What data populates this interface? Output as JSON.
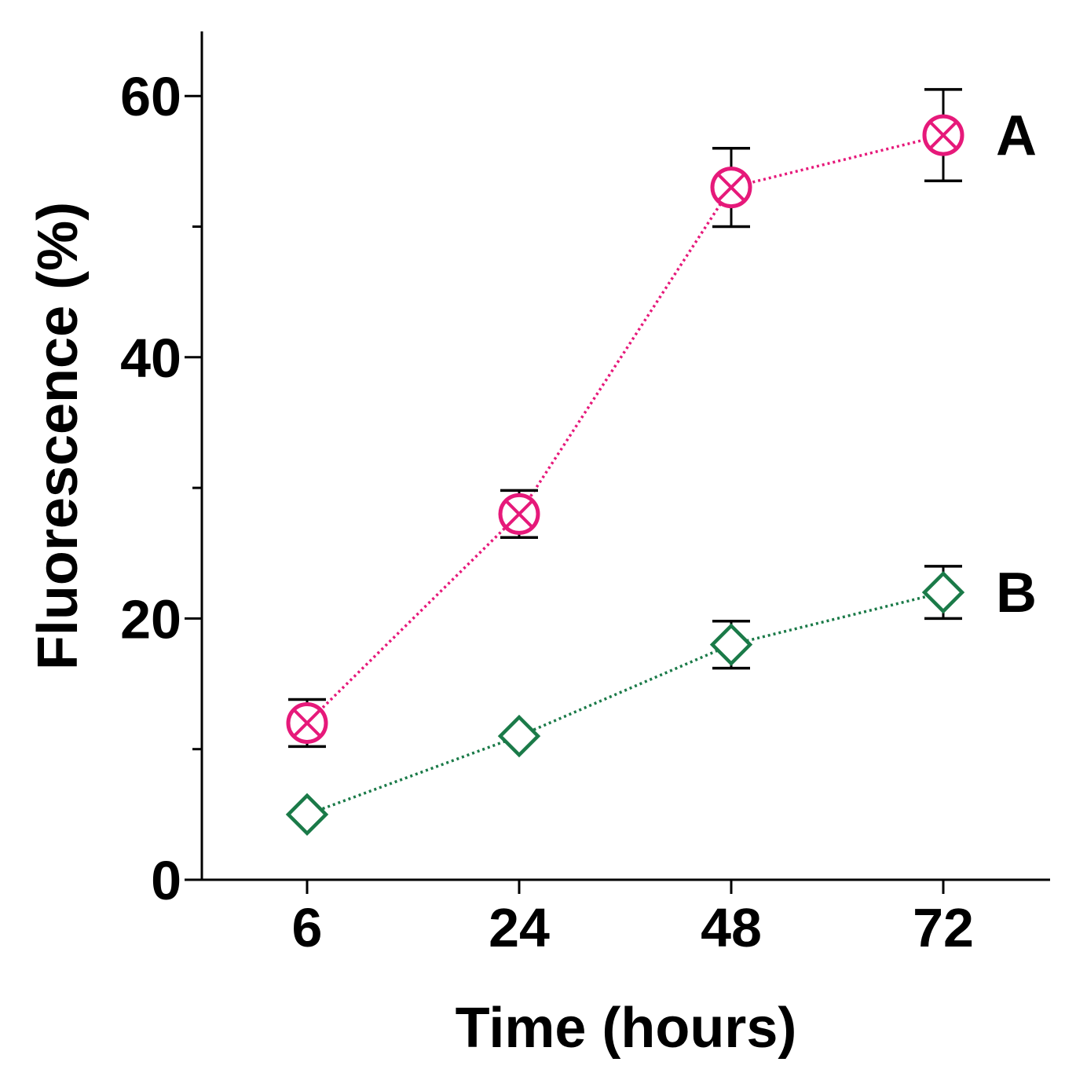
{
  "chart_data": {
    "type": "line",
    "title": "",
    "xlabel": "Time (hours)",
    "ylabel": "Fluorescence (%)",
    "categories": [
      "6",
      "24",
      "48",
      "72"
    ],
    "ylim": [
      0,
      65
    ],
    "yticks_major": [
      0,
      20,
      40,
      60
    ],
    "yticks_major_labels": [
      "0",
      "20",
      "40",
      "60"
    ],
    "yticks_minor": [
      10,
      30,
      50
    ],
    "grid": false,
    "legend": "inline-right",
    "series": [
      {
        "name": "A",
        "color": "#e6197a",
        "marker": "circle-x",
        "values": [
          12,
          28,
          53,
          57
        ],
        "err": [
          1.8,
          1.8,
          3,
          3.5
        ]
      },
      {
        "name": "B",
        "color": "#1a7a48",
        "marker": "diamond",
        "values": [
          5,
          11,
          18,
          22
        ],
        "err": [
          0,
          0,
          1.8,
          2
        ]
      }
    ]
  }
}
